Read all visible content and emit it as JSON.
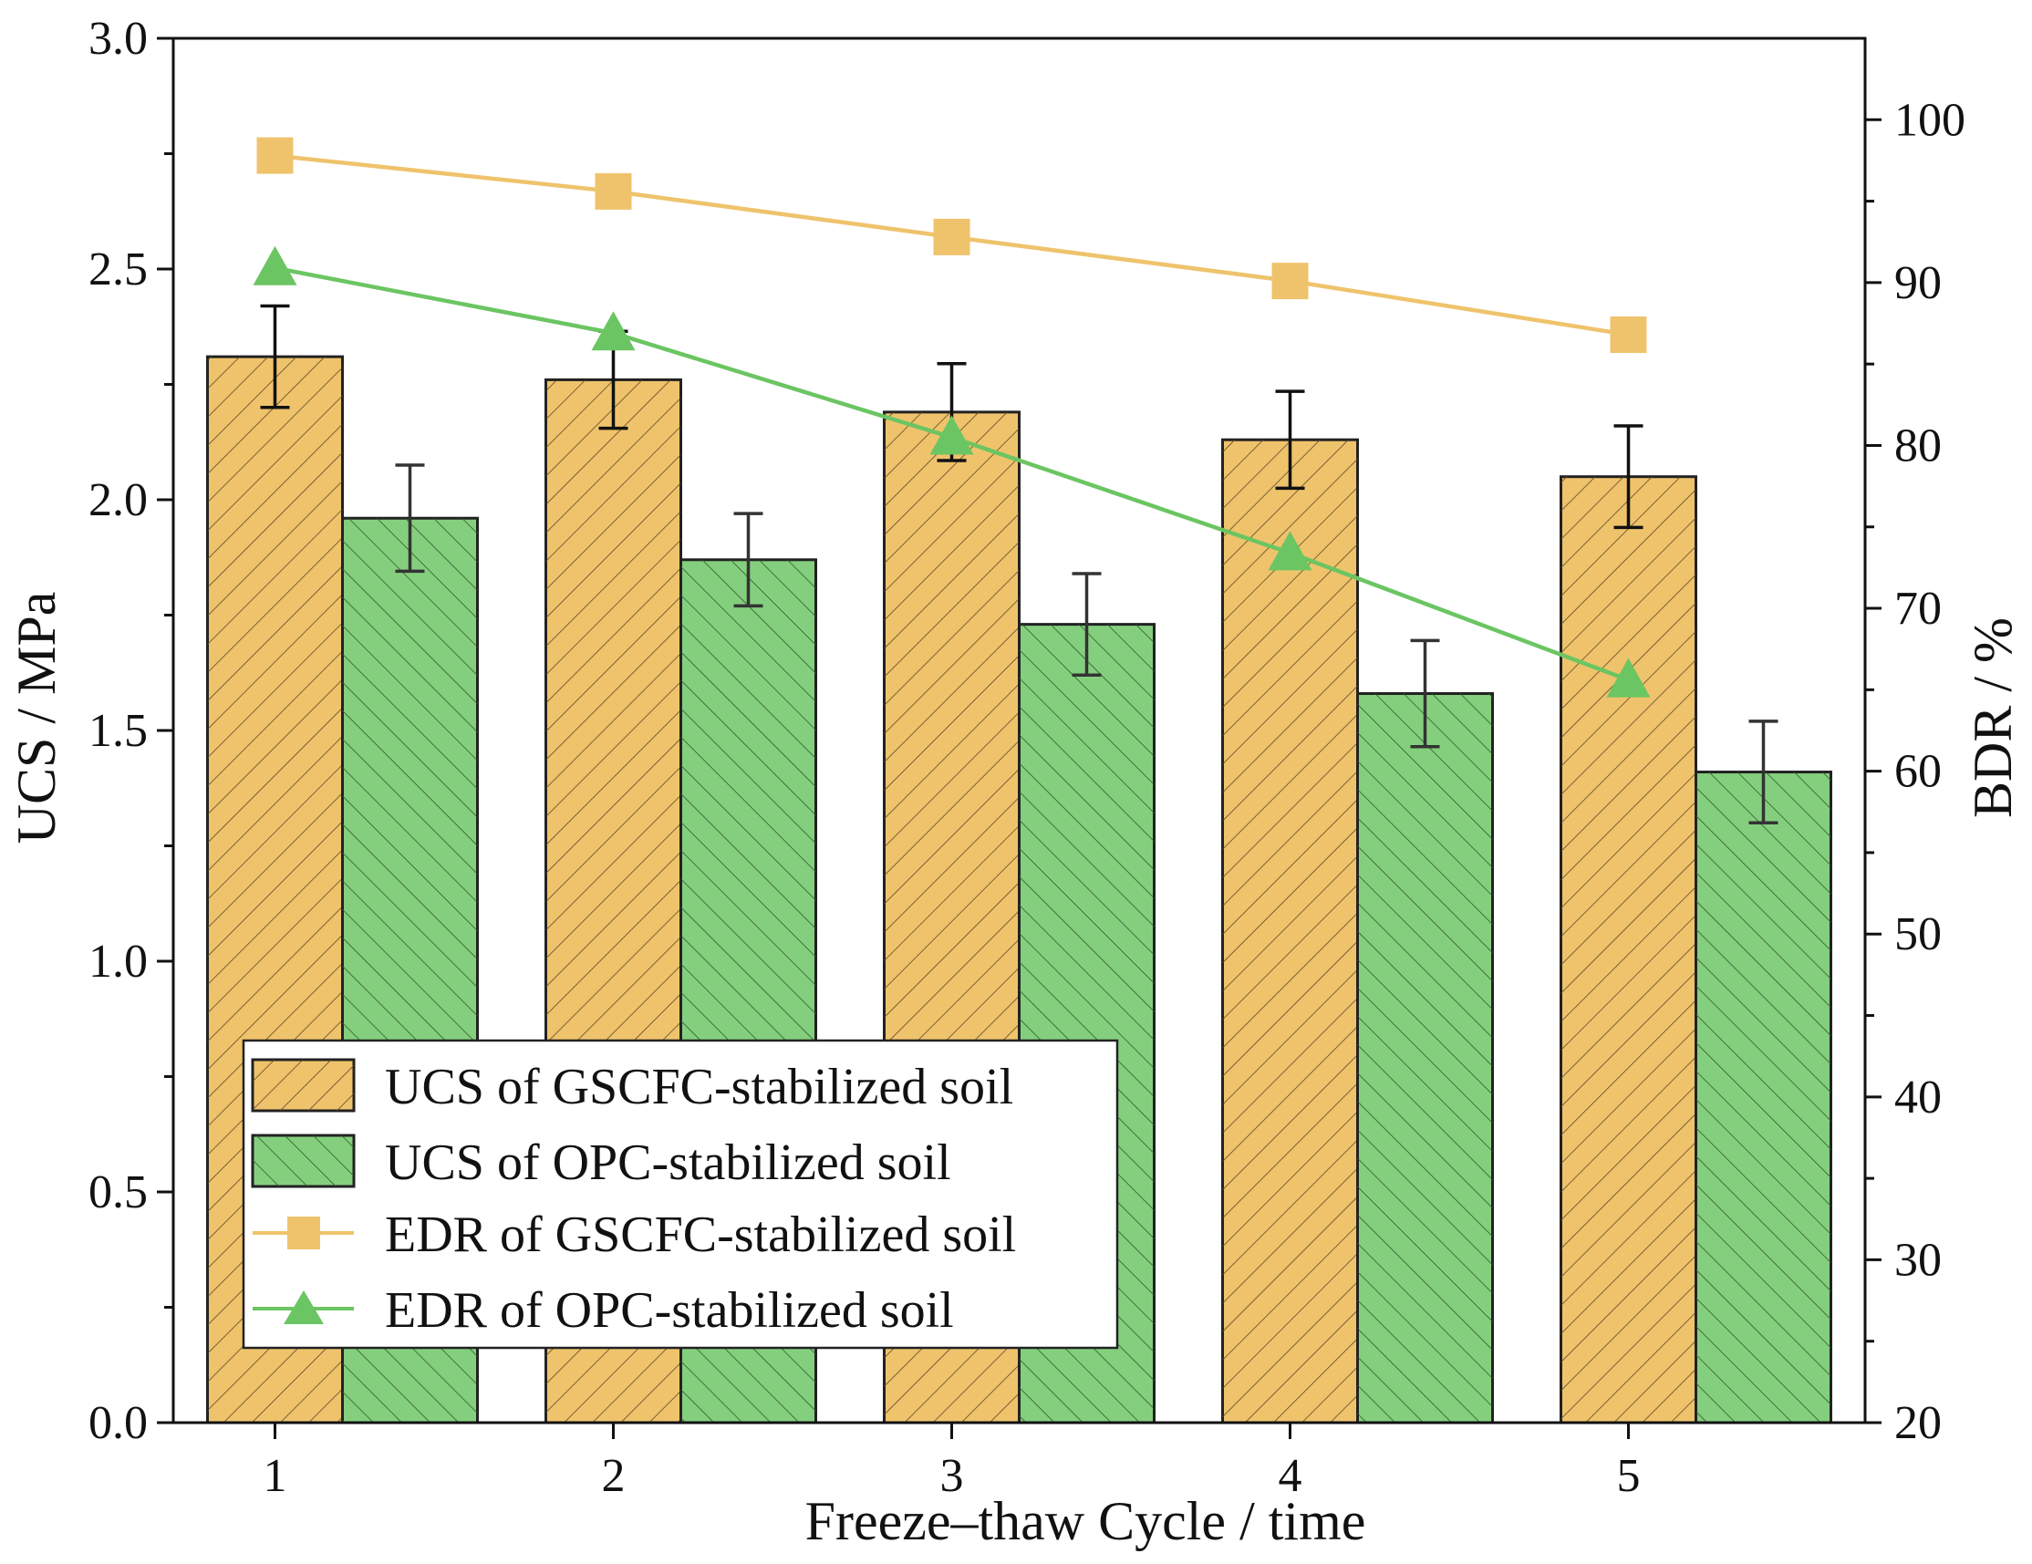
{
  "chart_data": {
    "type": "bar",
    "title": "",
    "xlabel": "Freeze–thaw Cycle / time",
    "ylabel": "UCS / MPa",
    "y2label": "BDR / %",
    "categories": [
      "1",
      "2",
      "3",
      "4",
      "5"
    ],
    "ylim": [
      0.0,
      3.0
    ],
    "y2lim": [
      20,
      105
    ],
    "yticks": [
      "0.0",
      "0.5",
      "1.0",
      "1.5",
      "2.0",
      "2.5",
      "3.0"
    ],
    "y2ticks": [
      "20",
      "30",
      "40",
      "50",
      "60",
      "70",
      "80",
      "90",
      "100"
    ],
    "bar_series": [
      {
        "name": "UCS of GSCFC-stabilized soil",
        "color": "#EFC36C",
        "values": [
          2.31,
          2.26,
          2.19,
          2.13,
          2.05
        ],
        "errors": [
          0.11,
          0.105,
          0.105,
          0.105,
          0.11
        ]
      },
      {
        "name": "UCS of OPC-stabilized soil",
        "color": "#84CF7E",
        "values": [
          1.96,
          1.87,
          1.73,
          1.58,
          1.41
        ],
        "errors": [
          0.115,
          0.1,
          0.11,
          0.115,
          0.11
        ]
      }
    ],
    "line_series": [
      {
        "name": "EDR of GSCFC-stabilized soil",
        "color": "#EFC36C",
        "marker": "square",
        "axis": "right",
        "values": [
          97.8,
          95.6,
          92.8,
          90.1,
          86.8
        ]
      },
      {
        "name": "EDR of OPC-stabilized soil",
        "color": "#6BC562",
        "marker": "triangle",
        "axis": "right",
        "values": [
          90.9,
          86.9,
          80.5,
          73.4,
          65.6
        ]
      }
    ],
    "legend_position": "bottom-left",
    "grid": false
  }
}
